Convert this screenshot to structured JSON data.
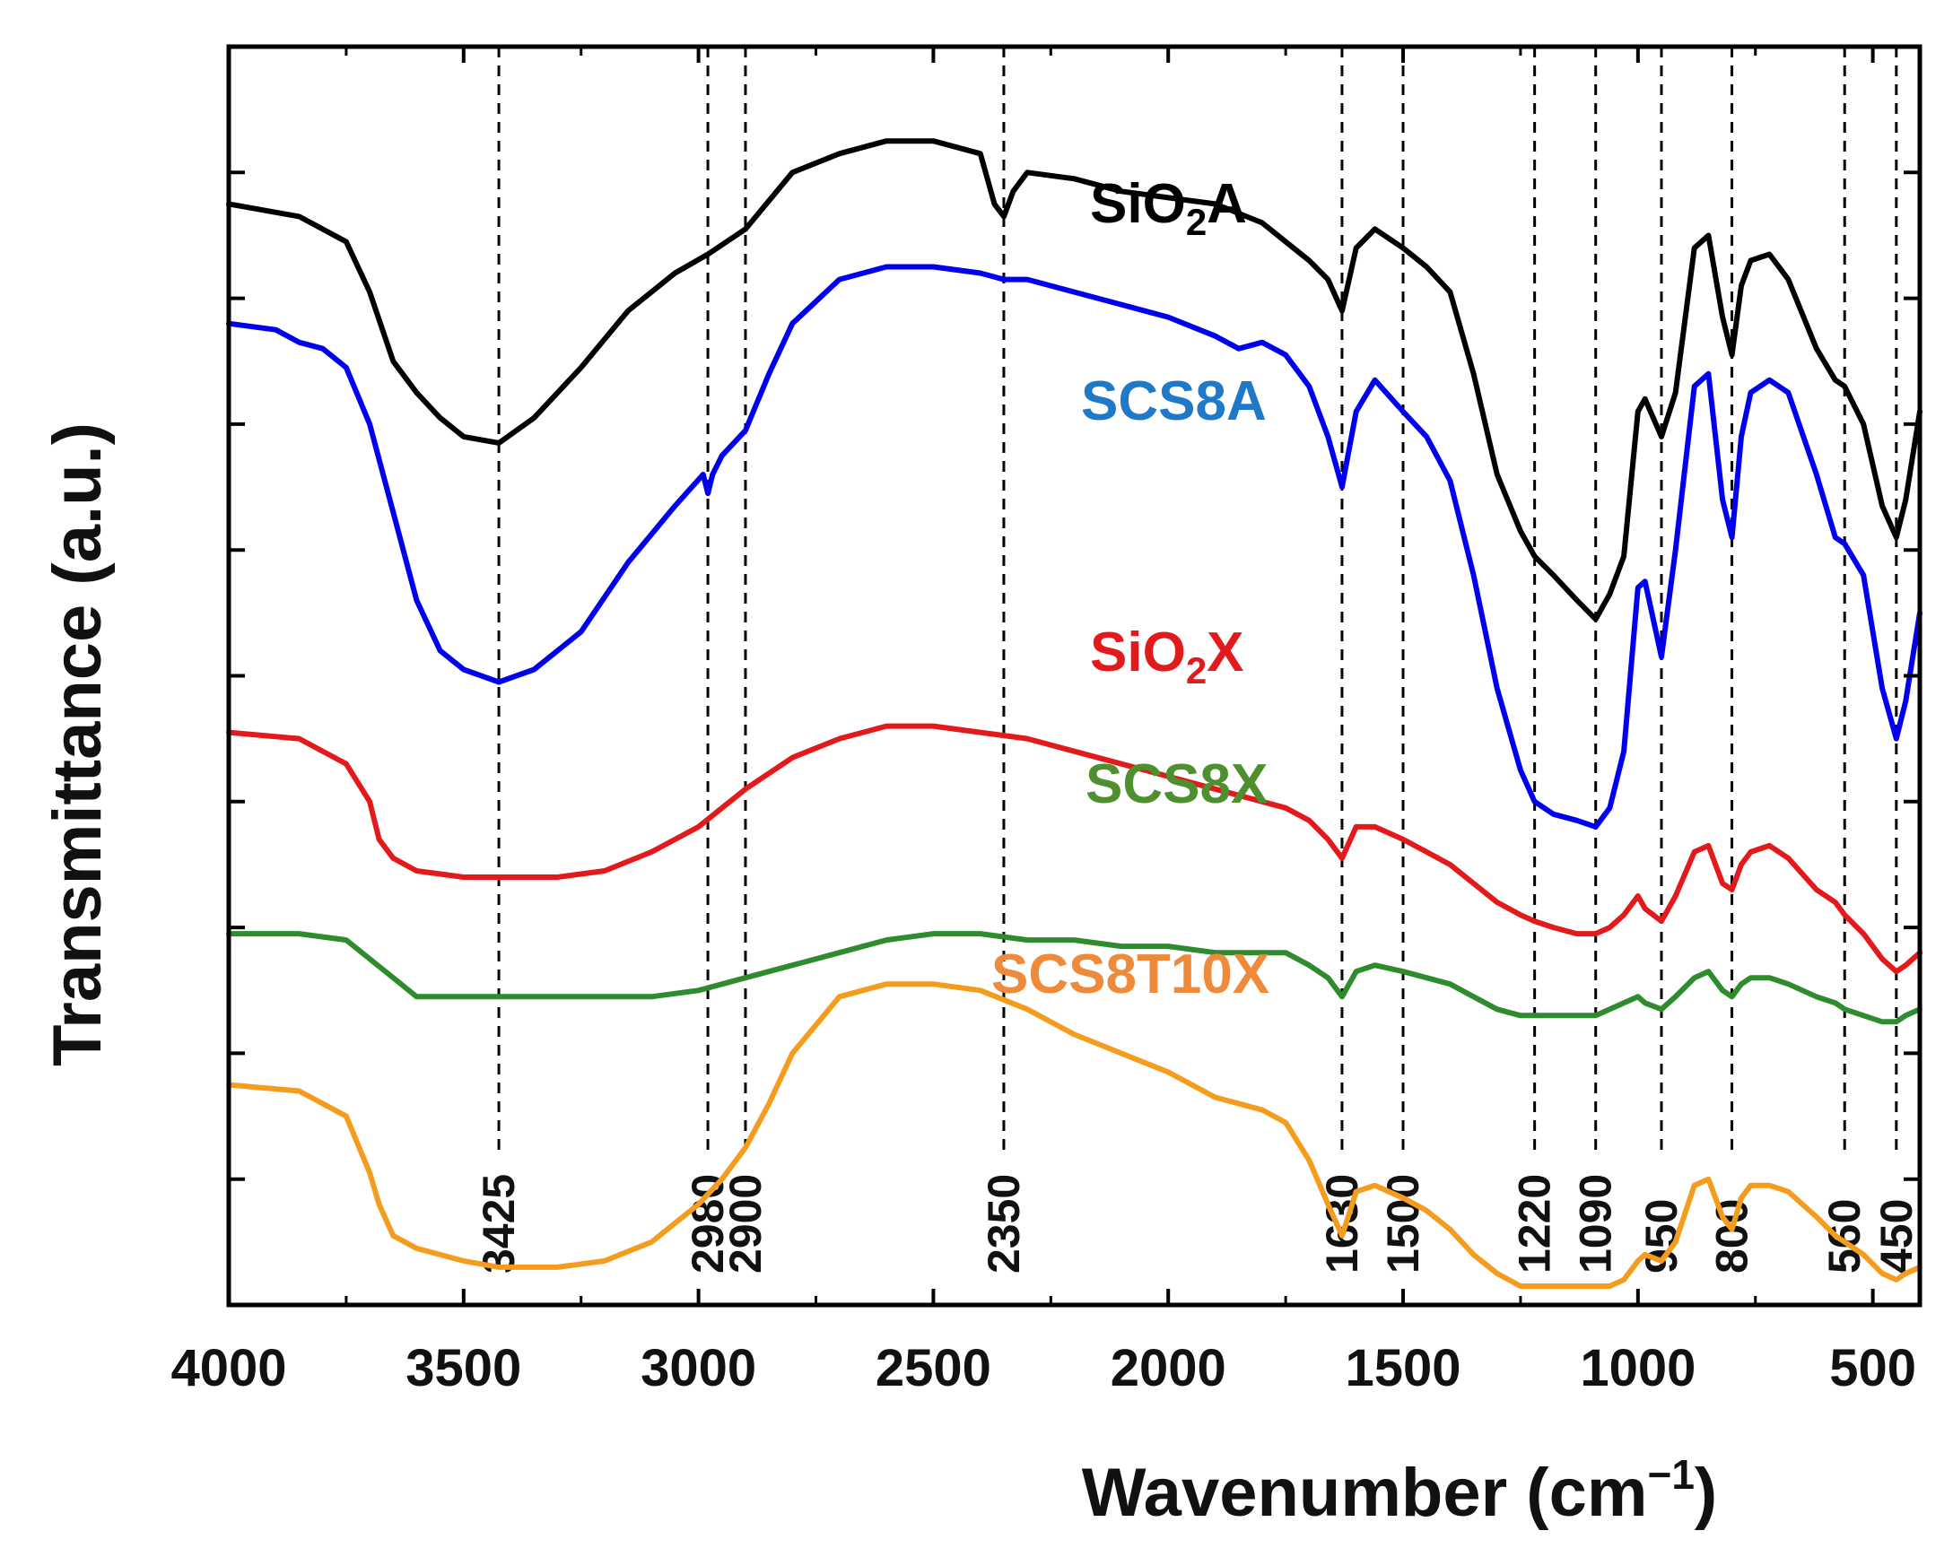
{
  "chart_data": {
    "type": "line",
    "title": "",
    "xlabel": "Wavenumber (cm",
    "xlabel_sup": "−1",
    "xlabel_close": ")",
    "ylabel": "Transmittance (a.u.)",
    "xlim": [
      4000,
      400
    ],
    "x_reversed": true,
    "ylim": [
      0,
      100
    ],
    "grid": false,
    "x_ticks": [
      "4000",
      "3500",
      "3000",
      "2500",
      "2000",
      "1500",
      "1000",
      "500"
    ],
    "x_tick_values": [
      4000,
      3500,
      3000,
      2500,
      2000,
      1500,
      1000,
      500
    ],
    "y_tick_values": [
      10,
      20,
      30,
      40,
      50,
      60,
      70,
      80,
      90,
      100
    ],
    "y_tick_labels_shown": false,
    "reference_lines": [
      3425,
      2980,
      2900,
      2350,
      1630,
      1500,
      1220,
      1090,
      950,
      800,
      560,
      450
    ],
    "reference_labels": [
      "3425",
      "2980",
      "2900",
      "2350",
      "1630",
      "1500",
      "1220",
      "1090",
      "950",
      "800",
      "560",
      "450"
    ],
    "series": [
      {
        "name": "SiO2A",
        "label_main": "SiO",
        "label_sub": "2",
        "label_tail": "A",
        "color": "#000000",
        "x": [
          4000,
          3850,
          3750,
          3700,
          3650,
          3600,
          3550,
          3500,
          3425,
          3350,
          3250,
          3150,
          3050,
          2980,
          2900,
          2800,
          2700,
          2600,
          2500,
          2400,
          2370,
          2350,
          2330,
          2300,
          2200,
          2100,
          2000,
          1900,
          1800,
          1750,
          1700,
          1660,
          1630,
          1600,
          1560,
          1500,
          1450,
          1400,
          1350,
          1300,
          1250,
          1220,
          1180,
          1130,
          1090,
          1060,
          1030,
          1000,
          985,
          950,
          920,
          880,
          850,
          820,
          800,
          780,
          760,
          720,
          680,
          620,
          580,
          560,
          520,
          480,
          450,
          430,
          400
        ],
        "y": [
          87.5,
          86.5,
          84.5,
          80.5,
          75,
          72.5,
          70.5,
          69,
          68.5,
          70.5,
          74.5,
          79,
          82,
          83.5,
          85.5,
          90,
          91.5,
          92.5,
          92.5,
          91.5,
          87.5,
          86.5,
          88.5,
          90,
          89.5,
          88.5,
          88,
          87.5,
          86,
          84.5,
          83,
          81.5,
          79,
          84,
          85.5,
          84,
          82.5,
          80.5,
          74,
          66,
          61.5,
          59.5,
          58,
          56,
          54.5,
          56.5,
          59.5,
          71,
          72,
          69,
          72.5,
          84,
          85,
          78.5,
          75.5,
          81,
          83,
          83.5,
          81.5,
          76,
          73.5,
          73,
          70,
          63.5,
          61,
          64,
          71
        ]
      },
      {
        "name": "SCS8A",
        "label_main": "SCS8A",
        "label_sub": "",
        "label_tail": "",
        "color": "#0000ee",
        "x": [
          4000,
          3900,
          3850,
          3800,
          3750,
          3700,
          3650,
          3600,
          3550,
          3500,
          3425,
          3350,
          3250,
          3150,
          3050,
          2990,
          2980,
          2970,
          2950,
          2900,
          2850,
          2800,
          2700,
          2600,
          2500,
          2400,
          2350,
          2300,
          2200,
          2100,
          2000,
          1900,
          1850,
          1800,
          1750,
          1700,
          1660,
          1630,
          1600,
          1560,
          1500,
          1450,
          1400,
          1350,
          1300,
          1250,
          1220,
          1180,
          1130,
          1090,
          1060,
          1030,
          1000,
          985,
          950,
          920,
          880,
          850,
          820,
          800,
          780,
          760,
          720,
          680,
          620,
          580,
          560,
          520,
          480,
          450,
          430,
          400
        ],
        "y": [
          78,
          77.5,
          76.5,
          76,
          74.5,
          70,
          63,
          56,
          52,
          50.5,
          49.5,
          50.5,
          53.5,
          59,
          63.5,
          66,
          64.5,
          66,
          67.5,
          69.5,
          74,
          78,
          81.5,
          82.5,
          82.5,
          82,
          81.5,
          81.5,
          80.5,
          79.5,
          78.5,
          77,
          76,
          76.5,
          75.5,
          73,
          69,
          65,
          71,
          73.5,
          71,
          69,
          65.5,
          58,
          49,
          42.5,
          40,
          39,
          38.5,
          38,
          39.5,
          44,
          57,
          57.5,
          51.5,
          60,
          73,
          74,
          64,
          61,
          69,
          72.5,
          73.5,
          72.5,
          66,
          61,
          60.5,
          58,
          49,
          45,
          48,
          55
        ]
      },
      {
        "name": "SiO2X",
        "label_main": "SiO",
        "label_sub": "2",
        "label_tail": "X",
        "color": "#e31a1c",
        "x": [
          4000,
          3850,
          3750,
          3700,
          3680,
          3650,
          3600,
          3500,
          3425,
          3300,
          3200,
          3100,
          3000,
          2900,
          2800,
          2700,
          2600,
          2500,
          2400,
          2300,
          2200,
          2100,
          2000,
          1900,
          1800,
          1750,
          1700,
          1660,
          1630,
          1600,
          1560,
          1500,
          1450,
          1400,
          1350,
          1300,
          1250,
          1220,
          1180,
          1130,
          1090,
          1060,
          1030,
          1000,
          985,
          950,
          920,
          880,
          850,
          820,
          800,
          780,
          760,
          720,
          680,
          620,
          580,
          560,
          520,
          480,
          450,
          430,
          400
        ],
        "y": [
          45.5,
          45,
          43,
          40,
          37,
          35.5,
          34.5,
          34,
          34,
          34,
          34.5,
          36,
          38,
          41,
          43.5,
          45,
          46,
          46,
          45.5,
          45,
          44,
          43,
          42,
          41,
          40,
          39.5,
          38.5,
          37,
          35.5,
          38,
          38,
          37,
          36,
          35,
          33.5,
          32,
          31,
          30.5,
          30,
          29.5,
          29.5,
          30,
          31,
          32.5,
          31.5,
          30.5,
          32.5,
          36,
          36.5,
          33.5,
          33,
          35,
          36,
          36.5,
          35.5,
          33,
          32,
          31,
          29.5,
          27.5,
          26.5,
          27,
          28
        ]
      },
      {
        "name": "SCS8X",
        "label_main": "SCS8X",
        "label_sub": "",
        "label_tail": "",
        "color": "#2e8b2e",
        "x": [
          4000,
          3850,
          3750,
          3700,
          3650,
          3600,
          3500,
          3425,
          3300,
          3200,
          3100,
          3000,
          2900,
          2800,
          2700,
          2600,
          2500,
          2400,
          2300,
          2200,
          2100,
          2000,
          1900,
          1800,
          1750,
          1700,
          1660,
          1630,
          1600,
          1560,
          1500,
          1450,
          1400,
          1350,
          1300,
          1250,
          1220,
          1180,
          1130,
          1090,
          1060,
          1030,
          1000,
          985,
          950,
          920,
          880,
          850,
          820,
          800,
          780,
          760,
          720,
          680,
          620,
          580,
          560,
          520,
          480,
          450,
          430,
          400
        ],
        "y": [
          29.5,
          29.5,
          29,
          27.5,
          26,
          24.5,
          24.5,
          24.5,
          24.5,
          24.5,
          24.5,
          25,
          26,
          27,
          28,
          29,
          29.5,
          29.5,
          29,
          29,
          28.5,
          28.5,
          28,
          28,
          28,
          27,
          26,
          24.5,
          26.5,
          27,
          26.5,
          26,
          25.5,
          24.5,
          23.5,
          23,
          23,
          23,
          23,
          23,
          23.5,
          24,
          24.5,
          24,
          23.5,
          24.5,
          26,
          26.5,
          25,
          24.5,
          25.5,
          26,
          26,
          25.5,
          24.5,
          24,
          23.5,
          23,
          22.5,
          22.5,
          23,
          23.5
        ]
      },
      {
        "name": "SCS8T10X",
        "label_main": "SCS8T10X",
        "label_sub": "",
        "label_tail": "",
        "color": "#f39c1e",
        "x": [
          4000,
          3850,
          3750,
          3700,
          3680,
          3650,
          3600,
          3500,
          3425,
          3300,
          3200,
          3100,
          3000,
          2950,
          2900,
          2850,
          2800,
          2700,
          2600,
          2500,
          2400,
          2300,
          2200,
          2100,
          2000,
          1900,
          1800,
          1750,
          1700,
          1660,
          1630,
          1600,
          1560,
          1500,
          1450,
          1400,
          1350,
          1300,
          1250,
          1220,
          1180,
          1130,
          1090,
          1060,
          1030,
          1000,
          985,
          950,
          920,
          880,
          850,
          820,
          800,
          780,
          760,
          720,
          680,
          620,
          580,
          560,
          520,
          480,
          450,
          430,
          400
        ],
        "y": [
          17.5,
          17,
          15,
          10.5,
          8,
          5.5,
          4.5,
          3.5,
          3,
          3,
          3.5,
          5,
          8,
          10,
          12.5,
          16,
          20,
          24.5,
          25.5,
          25.5,
          25,
          23.5,
          21.5,
          20,
          18.5,
          16.5,
          15.5,
          14.5,
          11.5,
          8,
          5.5,
          9,
          9.5,
          8.5,
          7.5,
          6,
          4,
          2.5,
          1.5,
          1.5,
          1.5,
          1.5,
          1.5,
          1.5,
          2,
          3.5,
          4,
          3.5,
          5,
          9.5,
          10,
          7,
          6,
          8.5,
          9.5,
          9.5,
          9,
          7,
          5.5,
          5,
          4,
          2.5,
          2,
          2.5,
          3
        ]
      }
    ]
  }
}
